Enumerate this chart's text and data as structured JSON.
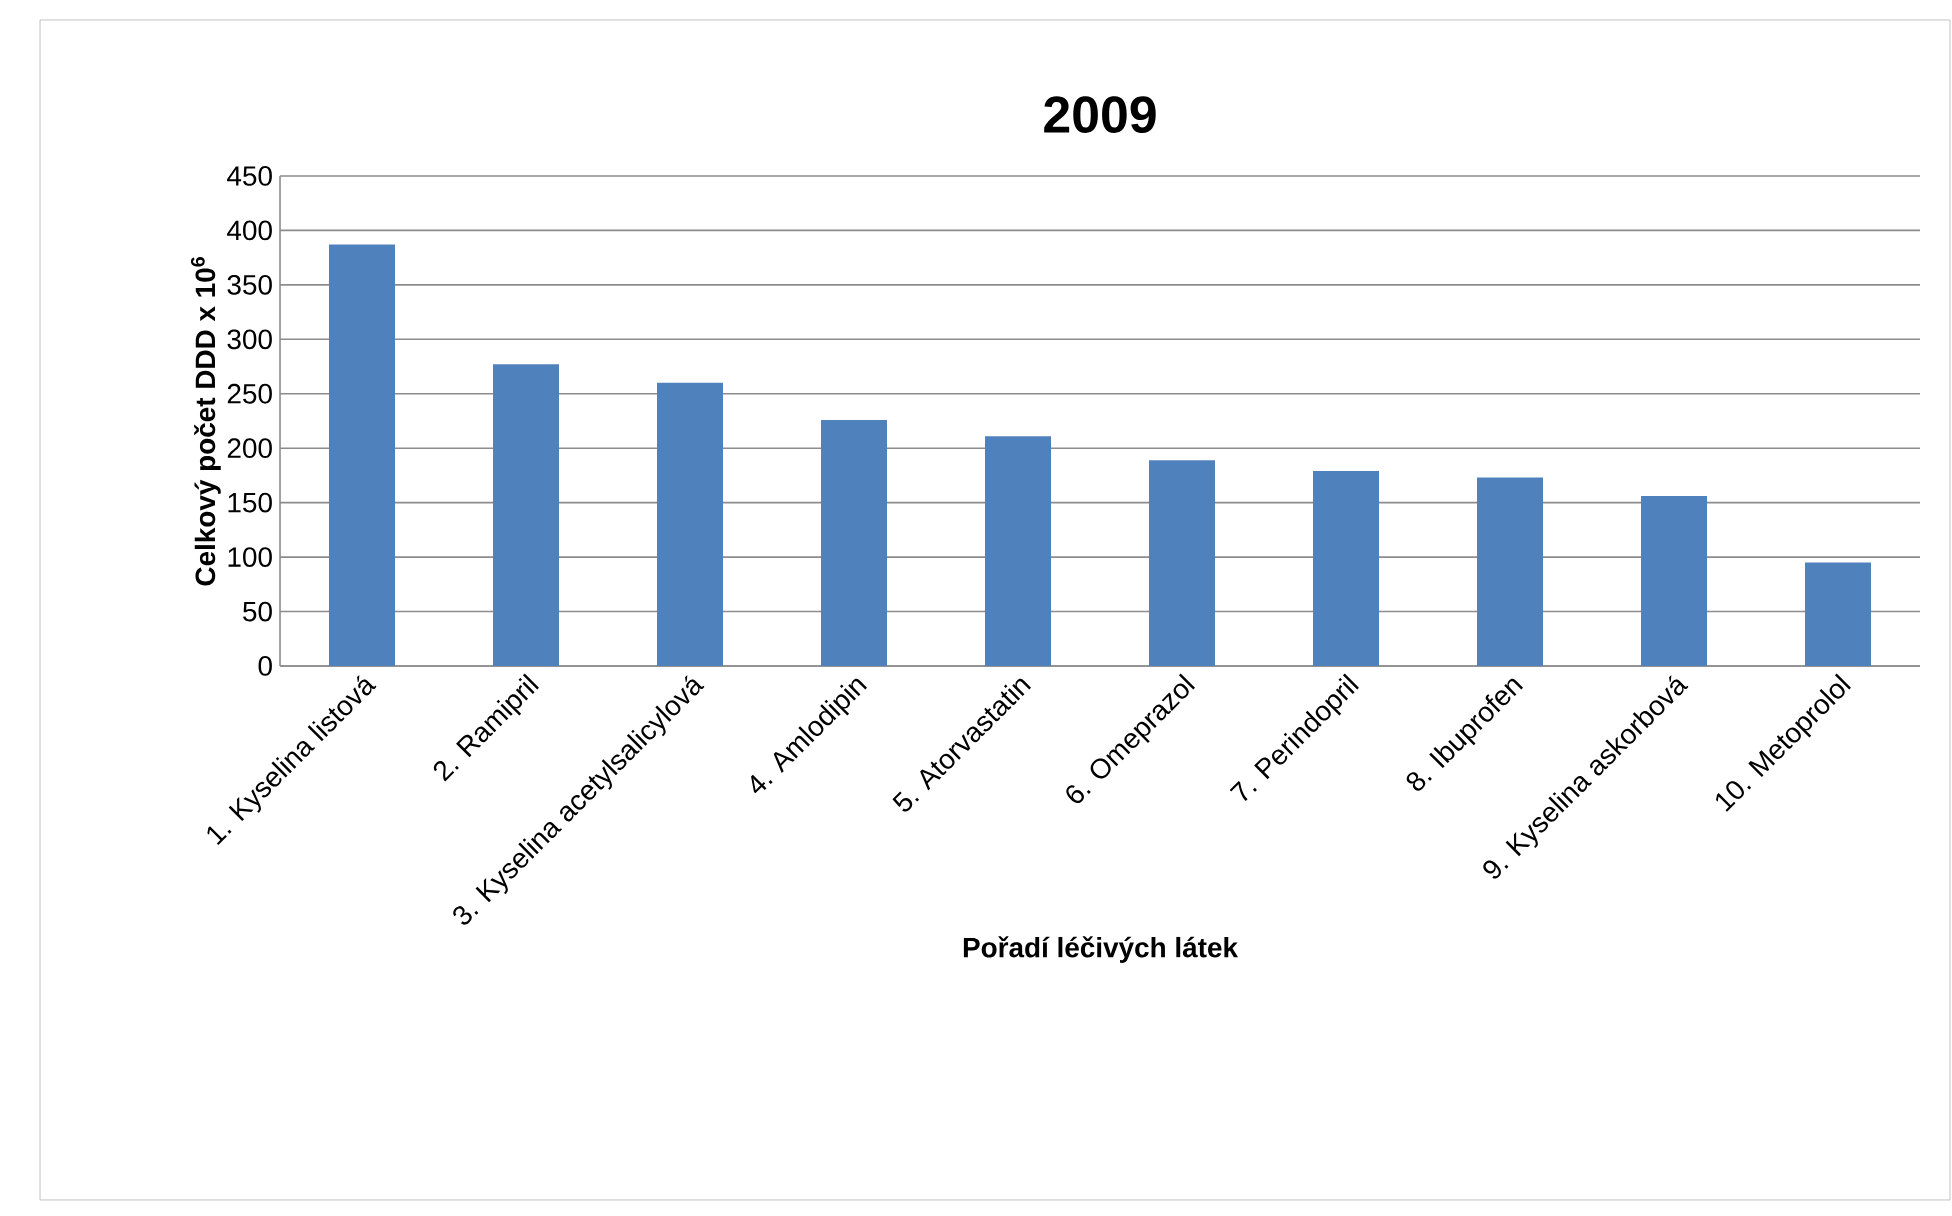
{
  "chart_data": {
    "type": "bar",
    "title": "2009",
    "categories": [
      "1. Kyselina listová",
      "2. Ramipril",
      "3. Kyselina acetylsalicylová",
      "4. Amlodipin",
      "5. Atorvastatin",
      "6. Omeprazol",
      "7. Perindopril",
      "8. Ibuprofen",
      "9. Kyselina askorbová",
      "10. Metoprolol"
    ],
    "values": [
      387,
      277,
      260,
      226,
      211,
      189,
      179,
      173,
      156,
      95
    ],
    "color": "#4f81bd",
    "xlabel": "Pořadí léčivých látek",
    "ylabel": "Celkový počet DDD x 10$^{6}$",
    "ylim": [
      0,
      450
    ],
    "yticks": [
      0,
      50,
      100,
      150,
      200,
      250,
      300,
      350,
      400,
      450
    ],
    "grid": "y"
  }
}
